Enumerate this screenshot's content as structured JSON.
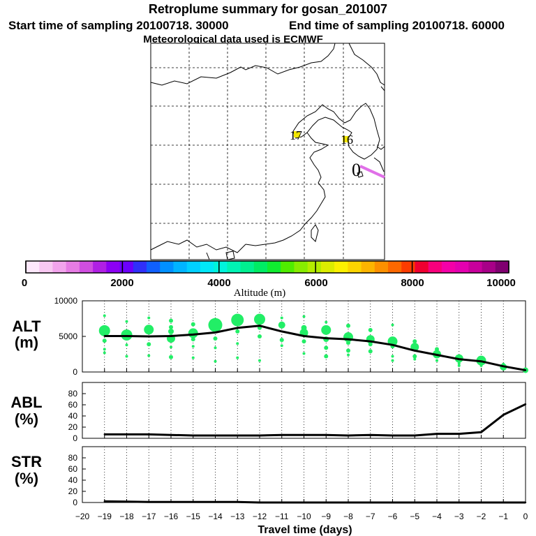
{
  "header": {
    "title": "Retroplume summary for gosan_201007",
    "start_label": "Start time of sampling 20100718. 30000",
    "end_label": "End time of sampling 20100718. 60000",
    "met_label": "Meteorological data used is ECMWF"
  },
  "map": {
    "day_labels": [
      {
        "text": "17",
        "color": "#f2e600"
      },
      {
        "text": "16",
        "color": "#f2e600"
      },
      {
        "text": "0",
        "color": "#000000"
      }
    ],
    "track_color": "#e070e8",
    "marker_color": "#f2e600"
  },
  "colorbar": {
    "label": "Altitude (m)",
    "ticks": [
      "0",
      "2000",
      "4000",
      "6000",
      "8000",
      "10000"
    ],
    "colors": [
      "#fde8fb",
      "#f8c8f2",
      "#f2a4ec",
      "#e67ce4",
      "#d04ee0",
      "#b020e4",
      "#8c00f4",
      "#6c00fc",
      "#3030fa",
      "#1060fe",
      "#0090ff",
      "#00b4ff",
      "#00d0ff",
      "#00e8f8",
      "#00f4dc",
      "#00f4b4",
      "#00f090",
      "#00ec64",
      "#10ec30",
      "#50ec00",
      "#88ec00",
      "#b4ec00",
      "#dcec00",
      "#fcf000",
      "#fcd400",
      "#fcb400",
      "#fc9000",
      "#fc6800",
      "#fc3c00",
      "#f00030",
      "#f8007c",
      "#f400a8",
      "#e400b0",
      "#c8009c",
      "#a80088",
      "#800070"
    ]
  },
  "chart_data": [
    {
      "type": "line",
      "panel": "ALT",
      "ylabel": "ALT",
      "yunit": "(m)",
      "ylim": [
        0,
        10000
      ],
      "yticks": [
        "10000",
        "5000",
        "0"
      ],
      "xlim": [
        -20,
        0
      ],
      "x": [
        -19,
        -18,
        -17,
        -16,
        -15,
        -14,
        -13,
        -12,
        -11,
        -10,
        -9,
        -8,
        -7,
        -6,
        -5,
        -4,
        -3,
        -2,
        -1,
        0
      ],
      "values": [
        5050,
        5050,
        5000,
        5050,
        5250,
        5550,
        6200,
        6500,
        5700,
        5050,
        4750,
        4600,
        4300,
        3800,
        3000,
        2400,
        1800,
        1500,
        800,
        250
      ],
      "bubbles_color": "#22ee66",
      "bubbles": [
        [
          -19,
          5800,
          8
        ],
        [
          -19,
          7900,
          2
        ],
        [
          -19,
          4400,
          3
        ],
        [
          -19,
          3200,
          2
        ],
        [
          -19,
          2700,
          2
        ],
        [
          -18,
          5200,
          8
        ],
        [
          -18,
          7100,
          2
        ],
        [
          -18,
          3800,
          2
        ],
        [
          -18,
          2200,
          2
        ],
        [
          -17,
          5950,
          7
        ],
        [
          -17,
          7600,
          2
        ],
        [
          -17,
          3900,
          3
        ],
        [
          -17,
          2300,
          2
        ],
        [
          -16,
          5700,
          4
        ],
        [
          -16,
          7200,
          3
        ],
        [
          -16,
          6300,
          3
        ],
        [
          -16,
          4700,
          6
        ],
        [
          -16,
          3500,
          2
        ],
        [
          -16,
          2100,
          3
        ],
        [
          -15,
          5450,
          7
        ],
        [
          -15,
          6700,
          3
        ],
        [
          -15,
          4600,
          3
        ],
        [
          -15,
          3600,
          2
        ],
        [
          -15,
          2000,
          2
        ],
        [
          -14,
          6600,
          10
        ],
        [
          -14,
          7400,
          2
        ],
        [
          -14,
          4700,
          3
        ],
        [
          -14,
          3400,
          2
        ],
        [
          -14,
          1500,
          2
        ],
        [
          -13,
          7300,
          9
        ],
        [
          -13,
          5700,
          3
        ],
        [
          -13,
          4000,
          2
        ],
        [
          -13,
          2000,
          2
        ],
        [
          -12,
          7400,
          8
        ],
        [
          -12,
          6200,
          3
        ],
        [
          -12,
          5000,
          3
        ],
        [
          -12,
          1600,
          2
        ],
        [
          -11,
          6600,
          5
        ],
        [
          -11,
          4500,
          3
        ],
        [
          -11,
          7600,
          2
        ],
        [
          -11,
          3700,
          2
        ],
        [
          -10,
          5500,
          6
        ],
        [
          -10,
          7800,
          2
        ],
        [
          -10,
          6200,
          4
        ],
        [
          -10,
          4300,
          3
        ],
        [
          -10,
          2600,
          2
        ],
        [
          -9,
          5900,
          7
        ],
        [
          -9,
          7000,
          2
        ],
        [
          -9,
          4600,
          4
        ],
        [
          -9,
          3400,
          3
        ],
        [
          -9,
          2200,
          3
        ],
        [
          -8,
          4900,
          7
        ],
        [
          -8,
          6500,
          3
        ],
        [
          -8,
          4100,
          3
        ],
        [
          -8,
          3000,
          3
        ],
        [
          -8,
          2400,
          2
        ],
        [
          -7,
          4600,
          6
        ],
        [
          -7,
          5900,
          3
        ],
        [
          -7,
          3900,
          3
        ],
        [
          -7,
          2900,
          3
        ],
        [
          -6,
          4300,
          7
        ],
        [
          -6,
          6600,
          2
        ],
        [
          -6,
          3600,
          3
        ],
        [
          -6,
          2200,
          2
        ],
        [
          -6,
          1600,
          2
        ],
        [
          -5,
          3500,
          6
        ],
        [
          -5,
          4300,
          3
        ],
        [
          -5,
          2200,
          3
        ],
        [
          -5,
          1800,
          2
        ],
        [
          -4,
          2500,
          6
        ],
        [
          -4,
          3200,
          3
        ],
        [
          -4,
          1600,
          2
        ],
        [
          -3,
          1900,
          6
        ],
        [
          -3,
          1200,
          2
        ],
        [
          -3,
          900,
          2
        ],
        [
          -2,
          1600,
          7
        ],
        [
          -2,
          1900,
          3
        ],
        [
          -2,
          900,
          2
        ],
        [
          -1,
          700,
          5
        ],
        [
          -1,
          1100,
          2
        ],
        [
          0,
          250,
          4
        ]
      ]
    },
    {
      "type": "line",
      "panel": "ABL",
      "ylabel": "ABL",
      "yunit": "(%)",
      "ylim": [
        0,
        100
      ],
      "yticks": [
        "80",
        "60",
        "40",
        "20",
        "0"
      ],
      "xlim": [
        -20,
        0
      ],
      "x": [
        -19,
        -18,
        -17,
        -16,
        -15,
        -14,
        -13,
        -12,
        -11,
        -10,
        -9,
        -8,
        -7,
        -6,
        -5,
        -4,
        -3,
        -2,
        -1,
        0
      ],
      "values": [
        7,
        7,
        7,
        6,
        5,
        5,
        5,
        5,
        6,
        6,
        6,
        5,
        6,
        5,
        5,
        8,
        8,
        11,
        42,
        61
      ]
    },
    {
      "type": "line",
      "panel": "STR",
      "ylabel": "STR",
      "yunit": "(%)",
      "ylim": [
        0,
        100
      ],
      "yticks": [
        "80",
        "60",
        "40",
        "20",
        "0"
      ],
      "xlim": [
        -20,
        0
      ],
      "x": [
        -19,
        -18,
        -17,
        -16,
        -15,
        -14,
        -13,
        -12,
        -11,
        -10,
        -9,
        -8,
        -7,
        -6,
        -5,
        -4,
        -3,
        -2,
        -1,
        0
      ],
      "values": [
        2,
        1.5,
        1,
        1,
        1,
        1,
        1,
        0,
        0,
        0,
        0,
        0,
        0,
        0,
        0,
        0,
        0,
        0,
        0,
        0
      ],
      "xlabel": "Travel time (days)",
      "xticks": [
        "−20",
        "−19",
        "−18",
        "−17",
        "−16",
        "−15",
        "−14",
        "−13",
        "−12",
        "−11",
        "−10",
        "−9",
        "−8",
        "−7",
        "−6",
        "−5",
        "−4",
        "−3",
        "−2",
        "−1",
        "0"
      ]
    }
  ]
}
